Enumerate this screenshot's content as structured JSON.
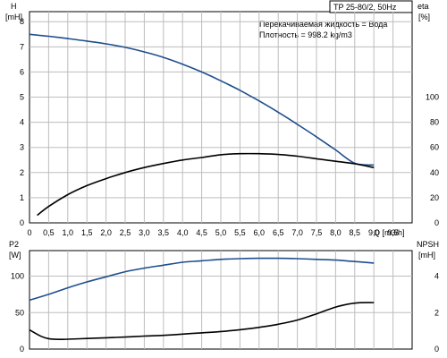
{
  "header": {
    "title": "TP 25-80/2, 50Hz",
    "fluid_line": "Перекачиваемая жидкость = Вода",
    "density_line": "Плотность = 998.2 kg/m3"
  },
  "axes": {
    "top_left_label": "H",
    "top_left_unit": "[mH]",
    "top_right_label": "eta",
    "top_right_unit": "[%]",
    "bottom_left_label": "P2",
    "bottom_left_unit": "[W]",
    "bottom_right_label": "NPSH",
    "bottom_right_unit": "[mH]",
    "x_label": "Q [m3/h]"
  },
  "chart_data": [
    {
      "type": "line",
      "panel": "top",
      "grid": true,
      "xlim": [
        0,
        10
      ],
      "x_ticks": [
        "0",
        "0,5",
        "1,0",
        "1,5",
        "2,0",
        "2,5",
        "3,0",
        "3,5",
        "4,0",
        "4,5",
        "5,0",
        "5,5",
        "6,0",
        "6,5",
        "7,0",
        "7,5",
        "8,0",
        "8,5",
        "9,0",
        "9,5"
      ],
      "ylim_left": [
        0,
        8.4
      ],
      "y_ticks_left": [
        "0",
        "1",
        "2",
        "3",
        "4",
        "5",
        "6",
        "7",
        "8"
      ],
      "ylim_right": [
        0,
        168
      ],
      "y_ticks_right": [
        "0",
        "20",
        "40",
        "60",
        "80",
        "100"
      ],
      "series": [
        {
          "axis": "left",
          "color": "#1f4e8c",
          "x": [
            0,
            0.5,
            1.0,
            1.5,
            2.0,
            2.5,
            3.0,
            3.5,
            4.0,
            4.5,
            5.0,
            5.5,
            6.0,
            6.5,
            7.0,
            7.5,
            8.0,
            8.5,
            9.0
          ],
          "values": [
            7.5,
            7.42,
            7.33,
            7.23,
            7.12,
            6.98,
            6.8,
            6.58,
            6.31,
            6.0,
            5.65,
            5.27,
            4.85,
            4.4,
            3.92,
            3.42,
            2.9,
            2.37,
            2.3
          ]
        },
        {
          "axis": "right",
          "color": "#000000",
          "x": [
            0.2,
            0.5,
            1.0,
            1.5,
            2.0,
            2.5,
            3.0,
            3.5,
            4.0,
            4.5,
            5.0,
            5.5,
            6.0,
            6.5,
            7.0,
            7.5,
            8.0,
            8.5,
            9.0
          ],
          "values": [
            6,
            13,
            22.4,
            29.6,
            35.2,
            40,
            44,
            47.2,
            50,
            52,
            54.2,
            55,
            55,
            54.4,
            53,
            51,
            49,
            47,
            44
          ]
        }
      ]
    },
    {
      "type": "line",
      "panel": "bottom",
      "grid": true,
      "xlim": [
        0,
        10
      ],
      "ylim_left": [
        0,
        135
      ],
      "y_ticks_left": [
        "0",
        "50",
        "100"
      ],
      "ylim_right": [
        0,
        5.4
      ],
      "y_ticks_right": [
        "0",
        "2",
        "4"
      ],
      "series": [
        {
          "axis": "left",
          "color": "#1f4e8c",
          "x": [
            0,
            0.5,
            1.0,
            1.5,
            2.0,
            2.5,
            3.0,
            3.5,
            4.0,
            4.5,
            5.0,
            5.5,
            6.0,
            6.5,
            7.0,
            7.5,
            8.0,
            8.5,
            9.0
          ],
          "values": [
            67,
            75,
            84,
            92,
            99,
            106,
            111,
            115,
            119,
            121,
            123,
            124,
            124.5,
            124.5,
            124,
            123,
            122,
            120,
            118
          ]
        },
        {
          "axis": "right",
          "color": "#000000",
          "x": [
            0,
            0.3,
            0.5,
            0.8,
            1.0,
            1.5,
            2.0,
            2.5,
            3.0,
            3.5,
            4.0,
            4.5,
            5.0,
            5.5,
            6.0,
            6.5,
            7.0,
            7.5,
            8.0,
            8.5,
            9.0
          ],
          "values": [
            1.05,
            0.7,
            0.57,
            0.53,
            0.54,
            0.58,
            0.62,
            0.66,
            0.71,
            0.75,
            0.82,
            0.89,
            0.96,
            1.06,
            1.19,
            1.36,
            1.59,
            1.93,
            2.3,
            2.52,
            2.55
          ]
        }
      ]
    }
  ]
}
